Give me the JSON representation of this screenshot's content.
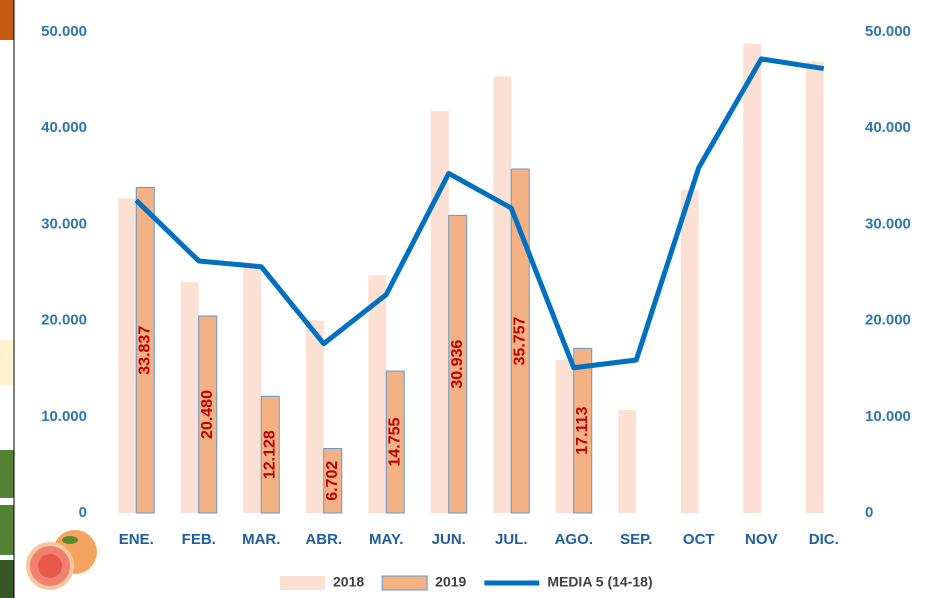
{
  "chart_data": {
    "type": "bar",
    "categories": [
      "ENE.",
      "FEB.",
      "MAR.",
      "ABR.",
      "MAY.",
      "JUN.",
      "JUL.",
      "AGO.",
      "SEP.",
      "OCT",
      "NOV",
      "DIC."
    ],
    "series": [
      {
        "name": "2018",
        "type": "bar",
        "color": "#fbe0d3",
        "values": [
          32700,
          24000,
          25500,
          20000,
          24700,
          41800,
          45400,
          15900,
          10700,
          33600,
          48800,
          46900
        ]
      },
      {
        "name": "2019",
        "type": "bar",
        "color": "#f4b183",
        "edge_color": "#5b9bd5",
        "values": [
          33837,
          20480,
          12128,
          6702,
          14755,
          30936,
          35757,
          17113,
          null,
          null,
          null,
          null
        ],
        "value_labels": [
          "33.837",
          "20.480",
          "12.128",
          "6.702",
          "14.755",
          "30.936",
          "35.757",
          "17.113",
          null,
          null,
          null,
          null
        ]
      },
      {
        "name": "MEDIA 5 (14-18)",
        "type": "line",
        "axis": "y2",
        "color": "#0070c0",
        "values": [
          32500,
          26200,
          25600,
          17600,
          22700,
          35300,
          31700,
          15100,
          15900,
          35900,
          47200,
          46200
        ]
      }
    ],
    "ylim": [
      0,
      50000
    ],
    "yticks": [
      0,
      {
        "value": 10000,
        "label": "10.000"
      },
      {
        "value": 20000,
        "label": "20.000"
      },
      {
        "value": 30000,
        "label": "30.000"
      },
      {
        "value": 40000,
        "label": "40.000"
      },
      {
        "value": 50000,
        "label": "50.000"
      }
    ],
    "y2lim": [
      0,
      50000
    ],
    "y2ticks": [
      0,
      {
        "value": 10000,
        "label": "10.000"
      },
      {
        "value": 20000,
        "label": "20.000"
      },
      {
        "value": 30000,
        "label": "30.000"
      },
      {
        "value": 40000,
        "label": "40.000"
      },
      {
        "value": 50000,
        "label": "50.000"
      }
    ],
    "legend": "bottom"
  }
}
